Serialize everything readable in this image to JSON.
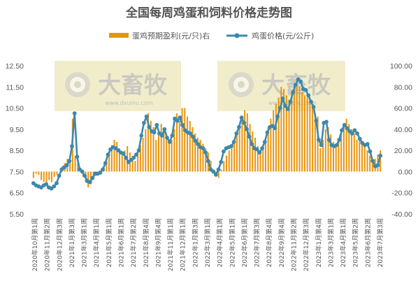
{
  "chart_data": {
    "type": "bar+line",
    "title": "全国每周鸡蛋和饲料价格走势图",
    "watermark": {
      "brand": "大畜牧",
      "url": "www.dxumu.com"
    },
    "left_axis": {
      "ylim": [
        5.5,
        12.5
      ],
      "ticks": [
        "5.50",
        "6.50",
        "7.50",
        "8.50",
        "9.50",
        "10.50",
        "11.50",
        "12.50"
      ]
    },
    "right_axis": {
      "ylim": [
        -40,
        100
      ],
      "ticks": [
        "-40.00",
        "-20.00",
        "0.00",
        "20.00",
        "40.00",
        "60.00",
        "80.00",
        "100.00"
      ]
    },
    "x_labels": [
      "2020年10月第1周",
      "2020年11月第2周",
      "2020年12月第3周",
      "2021年1月第3周",
      "2021年3月第1周",
      "2021年4月第1周",
      "2021年5月第1周",
      "2021年6月第1周",
      "2021年7月第2周",
      "2021年8月第4周",
      "2021年9月第4周",
      "2021年11月第1周",
      "2021年12月第1周",
      "2022年1月第3周",
      "2022年3月第1周",
      "2022年4月第1周",
      "2022年5月第1周",
      "2022年6月第1周",
      "2022年7月第3周",
      "2022年8月第4周",
      "2022年9月第4周",
      "2022年11月第2周",
      "2022年12月第3周",
      "2023年1月第4周",
      "2023年3月第1周",
      "2023年4月第1周",
      "2023年5月第2周",
      "2023年6月第2周",
      "2023年7月第3周"
    ],
    "series": [
      {
        "name": "蛋鸡预期盈利(元/只)右",
        "type": "bar",
        "axis": "right",
        "color": "#e8950e",
        "values": [
          -6,
          -2,
          -3,
          -8,
          -10,
          -12,
          -8,
          -10,
          -5,
          -3,
          0,
          5,
          8,
          12,
          15,
          50,
          15,
          8,
          2,
          -5,
          -10,
          -15,
          -12,
          -8,
          -4,
          0,
          2,
          5,
          10,
          18,
          25,
          30,
          28,
          22,
          18,
          20,
          24,
          18,
          15,
          10,
          18,
          25,
          32,
          40,
          55,
          48,
          42,
          30,
          35,
          45,
          40,
          32,
          28,
          30,
          40,
          55,
          48,
          60,
          60,
          52,
          48,
          42,
          36,
          32,
          30,
          26,
          22,
          18,
          10,
          2,
          -2,
          -6,
          2,
          10,
          15,
          20,
          25,
          30,
          35,
          42,
          50,
          58,
          55,
          45,
          38,
          32,
          24,
          18,
          22,
          30,
          42,
          50,
          58,
          64,
          70,
          80,
          78,
          72,
          68,
          75,
          82,
          88,
          80,
          75,
          72,
          70,
          65,
          60,
          55,
          52,
          22,
          30,
          40,
          42,
          35,
          28,
          25,
          30,
          36,
          45,
          50,
          45,
          40,
          36,
          30,
          32,
          28,
          24,
          20,
          15,
          10,
          12,
          16,
          20
        ]
      },
      {
        "name": "鸡蛋价格(元/公斤)",
        "type": "line",
        "axis": "left",
        "color": "#3d88ad",
        "values": [
          6.95,
          6.85,
          6.8,
          6.75,
          6.85,
          6.9,
          6.75,
          6.7,
          6.8,
          6.95,
          7.3,
          7.6,
          7.7,
          7.8,
          8.0,
          8.7,
          10.25,
          8.2,
          7.6,
          7.5,
          7.3,
          7.05,
          7.0,
          7.2,
          7.4,
          7.4,
          7.45,
          7.6,
          7.9,
          8.3,
          8.55,
          8.65,
          8.6,
          8.5,
          8.4,
          8.35,
          8.15,
          7.95,
          8.05,
          8.15,
          8.3,
          8.5,
          9.2,
          9.8,
          10.1,
          9.6,
          9.4,
          9.35,
          9.7,
          9.3,
          9.2,
          9.5,
          9.1,
          8.9,
          9.2,
          10.0,
          9.9,
          10.05,
          9.7,
          9.45,
          9.35,
          9.3,
          9.15,
          8.95,
          8.8,
          8.65,
          8.6,
          8.4,
          8.0,
          7.6,
          7.5,
          7.35,
          7.6,
          7.95,
          8.45,
          8.6,
          8.65,
          8.7,
          8.9,
          9.3,
          9.6,
          10.05,
          9.8,
          9.5,
          9.15,
          8.8,
          8.6,
          8.55,
          8.4,
          8.6,
          8.9,
          9.35,
          9.6,
          9.65,
          9.55,
          10.1,
          10.5,
          10.95,
          10.6,
          10.45,
          10.8,
          11.25,
          11.6,
          11.85,
          11.75,
          11.4,
          11.35,
          11.1,
          10.8,
          10.55,
          9.9,
          9.0,
          8.75,
          9.8,
          9.85,
          9.0,
          8.75,
          8.7,
          8.75,
          9.0,
          9.45,
          9.7,
          9.55,
          9.4,
          9.3,
          9.45,
          9.3,
          9.05,
          8.85,
          8.75,
          8.8,
          8.45,
          8.0,
          7.75,
          7.8,
          8.25
        ]
      }
    ],
    "legend_position": "top-center",
    "grid": false
  }
}
